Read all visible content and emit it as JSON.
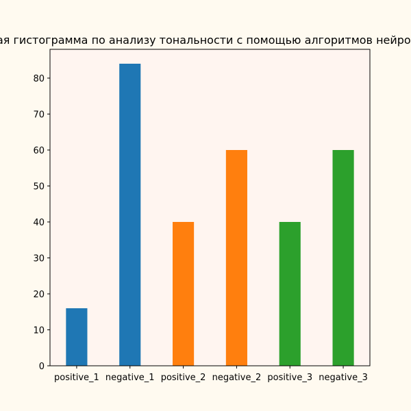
{
  "chart_data": {
    "type": "bar",
    "title": "Столбчатая гистограмма по анализу тональности с помощью алгоритмов нейронных сетей",
    "xlabel": "",
    "ylabel": "",
    "categories": [
      "positive_1",
      "negative_1",
      "positive_2",
      "negative_2",
      "positive_3",
      "negative_3"
    ],
    "values": [
      16,
      84,
      40,
      60,
      40,
      60
    ],
    "bar_colors": [
      "#1f77b4",
      "#1f77b4",
      "#ff7f0e",
      "#ff7f0e",
      "#2ca02c",
      "#2ca02c"
    ],
    "ylim": [
      0,
      88
    ],
    "yticks": [
      0,
      10,
      20,
      30,
      40,
      50,
      60,
      70,
      80
    ],
    "grid": false,
    "legend": "none",
    "plot_background": "#fff5f0",
    "figure_background": "#fffaf0"
  }
}
